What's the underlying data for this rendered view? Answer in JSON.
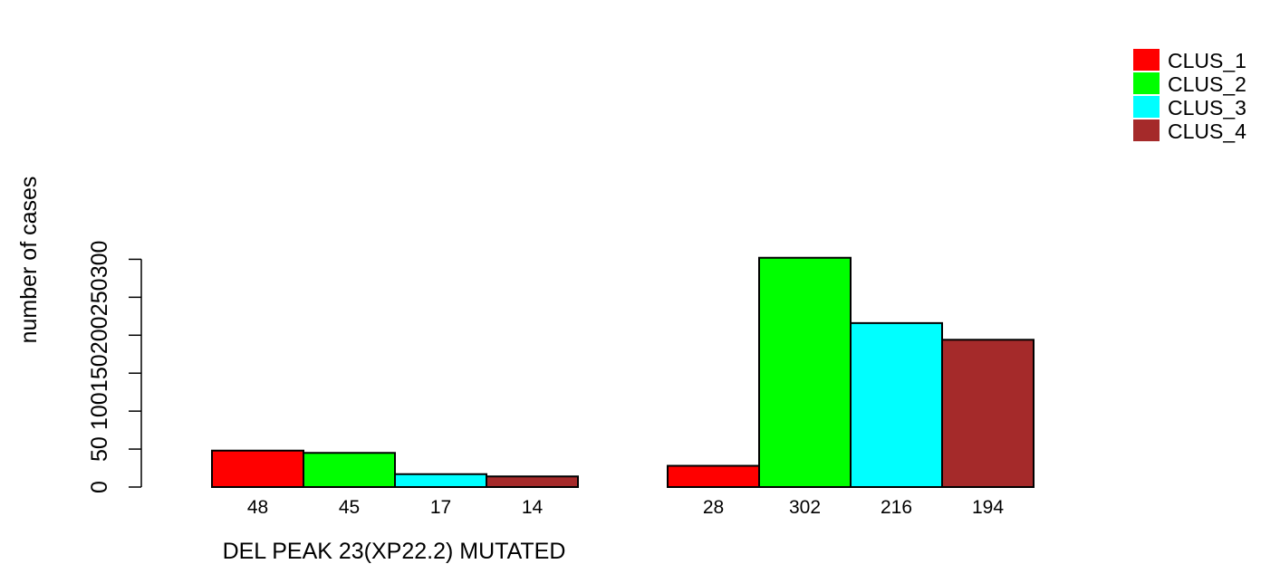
{
  "chart_data": {
    "type": "bar",
    "groups": [
      {
        "label": "DEL PEAK 23(XP22.2) MUTATED",
        "values": [
          48,
          45,
          17,
          14
        ]
      },
      {
        "label": "",
        "values": [
          28,
          302,
          216,
          194
        ]
      }
    ],
    "series": [
      {
        "name": "CLUS_1",
        "color": "#ff0000"
      },
      {
        "name": "CLUS_2",
        "color": "#00ff00"
      },
      {
        "name": "CLUS_3",
        "color": "#00ffff"
      },
      {
        "name": "CLUS_4",
        "color": "#a52a2a"
      }
    ],
    "ylabel": "number of cases",
    "yticks": [
      0,
      50,
      100,
      150,
      200,
      250,
      300
    ],
    "ylim": [
      0,
      302
    ],
    "grid": false,
    "legend": "top-right"
  }
}
